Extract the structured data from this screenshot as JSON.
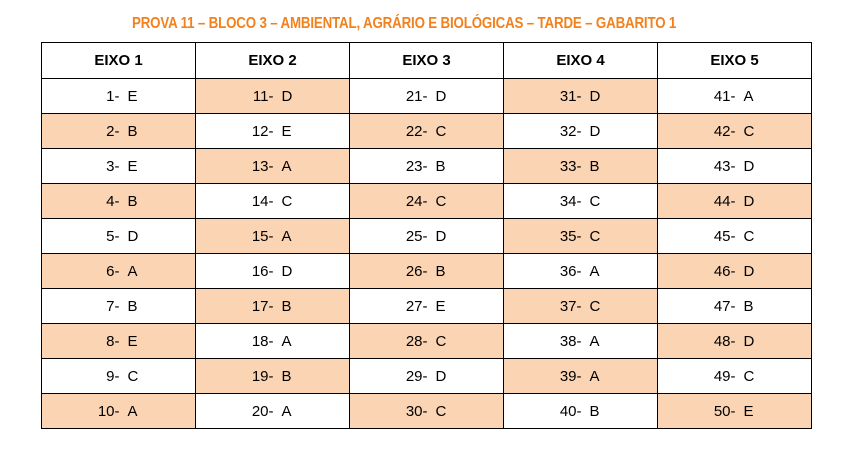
{
  "title": "PROVA 11 – BLOCO 3 – AMBIENTAL, AGRÁRIO E BIOLÓGICAS – TARDE – GABARITO 1",
  "colors": {
    "title": "#f2811d",
    "shaded_row": "#fbd4b4",
    "border": "#000000"
  },
  "columns": [
    "EIXO 1",
    "EIXO 2",
    "EIXO 3",
    "EIXO 4",
    "EIXO 5"
  ],
  "rows": [
    [
      {
        "num": "1-",
        "ans": "E"
      },
      {
        "num": "11-",
        "ans": "D"
      },
      {
        "num": "21-",
        "ans": "D"
      },
      {
        "num": "31-",
        "ans": "D"
      },
      {
        "num": "41-",
        "ans": "A"
      }
    ],
    [
      {
        "num": "2-",
        "ans": "B"
      },
      {
        "num": "12-",
        "ans": "E"
      },
      {
        "num": "22-",
        "ans": "C"
      },
      {
        "num": "32-",
        "ans": "D"
      },
      {
        "num": "42-",
        "ans": "C"
      }
    ],
    [
      {
        "num": "3-",
        "ans": "E"
      },
      {
        "num": "13-",
        "ans": "A"
      },
      {
        "num": "23-",
        "ans": "B"
      },
      {
        "num": "33-",
        "ans": "B"
      },
      {
        "num": "43-",
        "ans": "D"
      }
    ],
    [
      {
        "num": "4-",
        "ans": "B"
      },
      {
        "num": "14-",
        "ans": "C"
      },
      {
        "num": "24-",
        "ans": "C"
      },
      {
        "num": "34-",
        "ans": "C"
      },
      {
        "num": "44-",
        "ans": "D"
      }
    ],
    [
      {
        "num": "5-",
        "ans": "D"
      },
      {
        "num": "15-",
        "ans": "A"
      },
      {
        "num": "25-",
        "ans": "D"
      },
      {
        "num": "35-",
        "ans": "C"
      },
      {
        "num": "45-",
        "ans": "C"
      }
    ],
    [
      {
        "num": "6-",
        "ans": "A"
      },
      {
        "num": "16-",
        "ans": "D"
      },
      {
        "num": "26-",
        "ans": "B"
      },
      {
        "num": "36-",
        "ans": "A"
      },
      {
        "num": "46-",
        "ans": "D"
      }
    ],
    [
      {
        "num": "7-",
        "ans": "B"
      },
      {
        "num": "17-",
        "ans": "B"
      },
      {
        "num": "27-",
        "ans": "E"
      },
      {
        "num": "37-",
        "ans": "C"
      },
      {
        "num": "47-",
        "ans": "B"
      }
    ],
    [
      {
        "num": "8-",
        "ans": "E"
      },
      {
        "num": "18-",
        "ans": "A"
      },
      {
        "num": "28-",
        "ans": "C"
      },
      {
        "num": "38-",
        "ans": "A"
      },
      {
        "num": "48-",
        "ans": "D"
      }
    ],
    [
      {
        "num": "9-",
        "ans": "C"
      },
      {
        "num": "19-",
        "ans": "B"
      },
      {
        "num": "29-",
        "ans": "D"
      },
      {
        "num": "39-",
        "ans": "A"
      },
      {
        "num": "49-",
        "ans": "C"
      }
    ],
    [
      {
        "num": "10-",
        "ans": "A"
      },
      {
        "num": "20-",
        "ans": "A"
      },
      {
        "num": "30-",
        "ans": "C"
      },
      {
        "num": "40-",
        "ans": "B"
      },
      {
        "num": "50-",
        "ans": "E"
      }
    ]
  ]
}
